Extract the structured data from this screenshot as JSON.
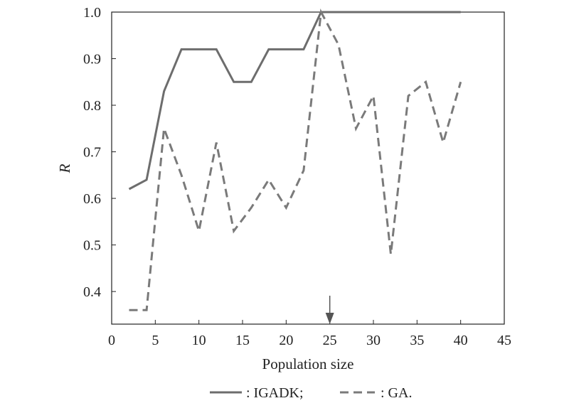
{
  "chart_data": {
    "type": "line",
    "xlabel": "Population size",
    "ylabel": "R",
    "xlim": [
      0,
      45
    ],
    "ylim": [
      0.33,
      1.0
    ],
    "xticks": [
      0,
      5,
      10,
      15,
      20,
      25,
      30,
      35,
      40,
      45
    ],
    "yticks": [
      0.4,
      0.5,
      0.6,
      0.7,
      0.8,
      0.9,
      1.0
    ],
    "xtick_labels": [
      "0",
      "5",
      "10",
      "15",
      "20",
      "25",
      "30",
      "35",
      "40",
      "45"
    ],
    "ytick_labels": [
      "0.4",
      "0.5",
      "0.6",
      "0.7",
      "0.8",
      "0.9",
      "1.0"
    ],
    "grid": false,
    "legend_position": "bottom",
    "annotation": {
      "type": "arrow",
      "x": 25
    },
    "series": [
      {
        "name": ": IGADK;",
        "style": "solid",
        "color": "#6d6d6d",
        "x": [
          2,
          4,
          6,
          8,
          10,
          12,
          14,
          16,
          18,
          20,
          22,
          24,
          26,
          28,
          30,
          32,
          34,
          36,
          38,
          40
        ],
        "y": [
          0.62,
          0.64,
          0.83,
          0.92,
          0.92,
          0.92,
          0.85,
          0.85,
          0.92,
          0.92,
          0.92,
          1.0,
          1.0,
          1.0,
          1.0,
          1.0,
          1.0,
          1.0,
          1.0,
          1.0
        ]
      },
      {
        "name": ": GA.",
        "style": "dashed",
        "color": "#7a7a7a",
        "x": [
          2,
          4,
          6,
          8,
          10,
          12,
          14,
          16,
          18,
          20,
          22,
          24,
          26,
          28,
          30,
          32,
          34,
          36,
          38,
          40
        ],
        "y": [
          0.36,
          0.36,
          0.75,
          0.65,
          0.53,
          0.72,
          0.53,
          0.58,
          0.64,
          0.58,
          0.66,
          1.0,
          0.93,
          0.75,
          0.82,
          0.48,
          0.82,
          0.85,
          0.72,
          0.85
        ]
      }
    ]
  }
}
